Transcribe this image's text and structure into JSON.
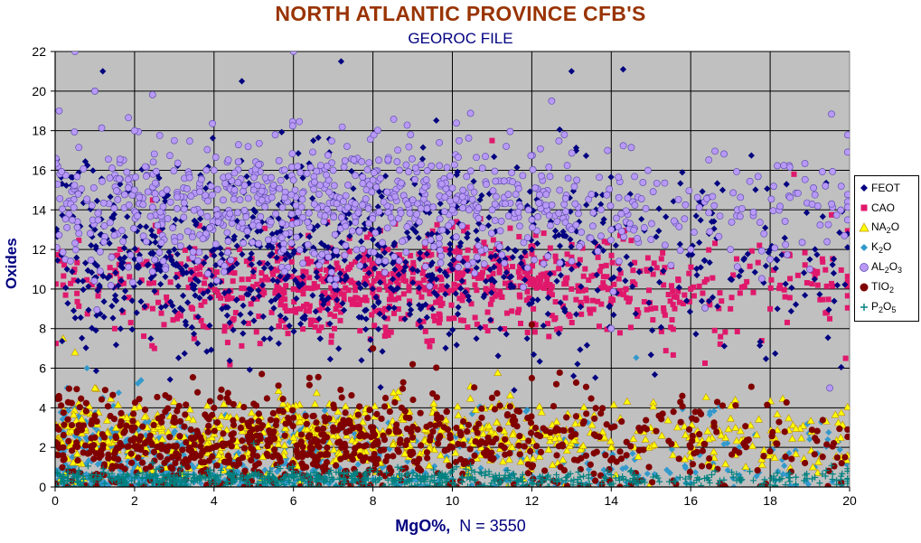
{
  "chart_data": {
    "type": "scatter",
    "title": "NORTH ATLANTIC PROVINCE CFB'S",
    "subtitle": "GEOROC FILE",
    "xlabel": "MgO%,",
    "xlabel_note": "N = 3550",
    "ylabel": "Oxides",
    "xlim": [
      0,
      20
    ],
    "ylim": [
      0,
      22
    ],
    "xticks": [
      "0",
      "2",
      "4",
      "6",
      "8",
      "10",
      "12",
      "14",
      "16",
      "18",
      "20"
    ],
    "yticks": [
      "0",
      "2",
      "4",
      "6",
      "8",
      "10",
      "12",
      "14",
      "16",
      "18",
      "20",
      "22"
    ],
    "grid": true,
    "legend_position": "right",
    "plot_background": "#c0c0c0",
    "series": [
      {
        "name": "FEOT",
        "marker": "diamond",
        "color": "#000080",
        "points": [
          [
            0.3,
            11
          ],
          [
            1,
            13
          ],
          [
            2,
            11.5
          ],
          [
            3,
            12
          ],
          [
            4,
            13.5
          ],
          [
            4.5,
            12.5
          ],
          [
            5,
            14
          ],
          [
            5.5,
            15
          ],
          [
            6,
            11.8
          ],
          [
            6.5,
            13
          ],
          [
            7,
            12
          ],
          [
            7.5,
            14.5
          ],
          [
            8,
            12.5
          ],
          [
            8.5,
            10.5
          ],
          [
            9,
            11
          ],
          [
            9.5,
            9
          ],
          [
            10,
            11
          ],
          [
            11,
            10.5
          ],
          [
            12,
            12
          ],
          [
            13,
            11
          ],
          [
            14,
            10.5
          ],
          [
            15,
            11
          ],
          [
            16,
            12
          ],
          [
            17,
            10.5
          ],
          [
            18,
            12
          ],
          [
            19,
            11.5
          ],
          [
            19.6,
            10.8
          ],
          [
            1.2,
            21
          ],
          [
            4.7,
            20.5
          ],
          [
            7.2,
            21.5
          ],
          [
            13,
            21
          ],
          [
            14.3,
            21.1
          ],
          [
            6.5,
            17.5
          ],
          [
            3.5,
            10
          ],
          [
            4.2,
            9
          ],
          [
            5.8,
            8.5
          ]
        ],
        "density": {
          "count": 900,
          "x": [
            0,
            20
          ],
          "center": [
            6.5,
            11.5
          ],
          "spread": [
            4.5,
            2.2
          ]
        }
      },
      {
        "name": "CAO",
        "marker": "square",
        "color": "#e0186c",
        "points": [
          [
            0.2,
            10.2
          ],
          [
            1.5,
            8
          ],
          [
            2.5,
            7
          ],
          [
            3.5,
            7.5
          ],
          [
            4.5,
            8.5
          ],
          [
            5,
            9.5
          ],
          [
            6,
            10
          ],
          [
            7,
            10.5
          ],
          [
            8,
            10
          ],
          [
            9,
            10.5
          ],
          [
            10,
            11
          ],
          [
            11,
            10
          ],
          [
            12,
            10.5
          ],
          [
            13,
            10
          ],
          [
            14,
            9.5
          ],
          [
            15,
            9
          ],
          [
            16,
            10
          ],
          [
            17,
            9
          ],
          [
            18,
            9
          ],
          [
            18.6,
            15.8
          ],
          [
            19.5,
            8.5
          ],
          [
            19.9,
            6.5
          ],
          [
            11,
            17.5
          ]
        ],
        "density": {
          "count": 900,
          "x": [
            0,
            20
          ],
          "center": [
            9,
            10.2
          ],
          "spread": [
            3.8,
            1.3
          ]
        }
      },
      {
        "name": "NA2O",
        "marker": "triangle",
        "color": "#ffff00",
        "edge": "#c09000",
        "points": [
          [
            0.2,
            7.5
          ],
          [
            0.5,
            6.8
          ],
          [
            1,
            5
          ],
          [
            2,
            4
          ],
          [
            3,
            3.5
          ],
          [
            4,
            3
          ],
          [
            5,
            2.8
          ],
          [
            6,
            2.5
          ],
          [
            7,
            2.6
          ],
          [
            8,
            2.4
          ],
          [
            9,
            2.5
          ],
          [
            10,
            2.3
          ],
          [
            12,
            2.3
          ],
          [
            14,
            2
          ],
          [
            16,
            1.8
          ],
          [
            18,
            1.7
          ],
          [
            19.8,
            1.5
          ]
        ],
        "density": {
          "count": 700,
          "x": [
            0,
            20
          ],
          "center": [
            6,
            2.6
          ],
          "spread": [
            4.8,
            0.9
          ]
        }
      },
      {
        "name": "K2O",
        "marker": "diamond",
        "color": "#3399cc",
        "points": [
          [
            0.3,
            5
          ],
          [
            0.5,
            4
          ],
          [
            0.8,
            6
          ],
          [
            1,
            3
          ],
          [
            1.2,
            4.5
          ],
          [
            0.2,
            2.5
          ],
          [
            2,
            1
          ],
          [
            4,
            0.6
          ],
          [
            8,
            0.4
          ],
          [
            12,
            0.3
          ],
          [
            16,
            0.2
          ],
          [
            19.8,
            0.1
          ]
        ],
        "density": {
          "count": 600,
          "x": [
            0,
            20
          ],
          "center": [
            1.5,
            1.2
          ],
          "spread": [
            4,
            1.4
          ]
        }
      },
      {
        "name": "AL2O3",
        "marker": "circle",
        "color": "#b899f5",
        "edge": "#5544aa",
        "points": [
          [
            0.1,
            19
          ],
          [
            0.5,
            22
          ],
          [
            1,
            20
          ],
          [
            2,
            18
          ],
          [
            3,
            17.5
          ],
          [
            4,
            16
          ],
          [
            5,
            15
          ],
          [
            6,
            22
          ],
          [
            6,
            15.5
          ],
          [
            7,
            16
          ],
          [
            8,
            15.5
          ],
          [
            9,
            14.5
          ],
          [
            10,
            14
          ],
          [
            11,
            14
          ],
          [
            12,
            13.5
          ],
          [
            13,
            13
          ],
          [
            14,
            13
          ],
          [
            15,
            12.5
          ],
          [
            16,
            12
          ],
          [
            17,
            12
          ],
          [
            18,
            11.5
          ],
          [
            19,
            11
          ],
          [
            12.5,
            19.5
          ],
          [
            19.5,
            5
          ],
          [
            14,
            8
          ]
        ],
        "density": {
          "count": 900,
          "x": [
            0,
            20
          ],
          "center": [
            6.5,
            14.2
          ],
          "spread": [
            4.5,
            1.7
          ]
        }
      },
      {
        "name": "TIO2",
        "marker": "circle",
        "color": "#800000",
        "points": [
          [
            0.2,
            2
          ],
          [
            1,
            2.5
          ],
          [
            2,
            3
          ],
          [
            3,
            3.5
          ],
          [
            4,
            4
          ],
          [
            5,
            4.2
          ],
          [
            6,
            3.5
          ],
          [
            7,
            3
          ],
          [
            8,
            2.8
          ],
          [
            9,
            2.5
          ],
          [
            10,
            2
          ],
          [
            11,
            4.5
          ],
          [
            12,
            5.5
          ],
          [
            14,
            3
          ],
          [
            16,
            2
          ],
          [
            18,
            1.8
          ],
          [
            19.8,
            1.2
          ],
          [
            8,
            7
          ],
          [
            9,
            6.2
          ],
          [
            12,
            8.2
          ]
        ],
        "density": {
          "count": 900,
          "x": [
            0,
            20
          ],
          "center": [
            6,
            2.2
          ],
          "spread": [
            4.5,
            1.2
          ]
        }
      },
      {
        "name": "P2O5",
        "marker": "plus",
        "color": "#008080",
        "points": [
          [
            0.2,
            0.3
          ],
          [
            1,
            0.4
          ],
          [
            2,
            0.5
          ],
          [
            3,
            0.6
          ],
          [
            4,
            0.5
          ],
          [
            5,
            0.6
          ],
          [
            6,
            0.5
          ],
          [
            7,
            0.4
          ],
          [
            8,
            0.3
          ],
          [
            10,
            0.2
          ],
          [
            12,
            0.2
          ],
          [
            14,
            0.1
          ],
          [
            16,
            0.1
          ],
          [
            18,
            0.1
          ],
          [
            19.8,
            0.1
          ],
          [
            5,
            2.2
          ]
        ],
        "density": {
          "count": 700,
          "x": [
            0,
            20
          ],
          "center": [
            6,
            0.4
          ],
          "spread": [
            5,
            0.25
          ]
        }
      }
    ]
  },
  "legend": {
    "items": [
      {
        "main": "FEOT",
        "parts": [
          [
            "FEOT",
            ""
          ]
        ]
      },
      {
        "main": "CAO",
        "parts": [
          [
            "CAO",
            ""
          ]
        ]
      },
      {
        "main": "NA2O",
        "parts": [
          [
            "NA",
            ""
          ],
          [
            "2",
            "sub"
          ],
          [
            "O",
            ""
          ]
        ]
      },
      {
        "main": "K2O",
        "parts": [
          [
            "K",
            ""
          ],
          [
            "2",
            "sub"
          ],
          [
            "O",
            ""
          ]
        ]
      },
      {
        "main": "AL2O3",
        "parts": [
          [
            "AL",
            ""
          ],
          [
            "2",
            "sub"
          ],
          [
            "O",
            ""
          ],
          [
            "3",
            "sub"
          ]
        ]
      },
      {
        "main": "TIO2",
        "parts": [
          [
            "TIO",
            ""
          ],
          [
            "2",
            "sub"
          ]
        ]
      },
      {
        "main": "P2O5",
        "parts": [
          [
            "P",
            ""
          ],
          [
            "2",
            "sub"
          ],
          [
            "O",
            ""
          ],
          [
            "5",
            "sub"
          ]
        ]
      }
    ]
  }
}
